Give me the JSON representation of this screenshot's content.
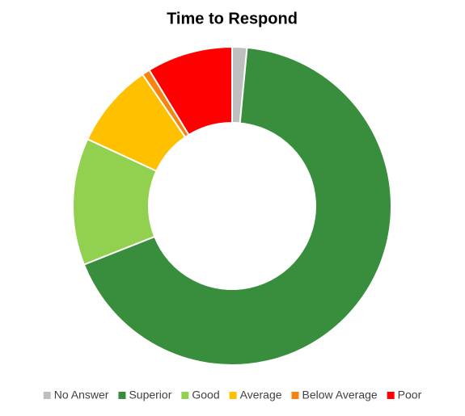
{
  "chart_data": {
    "type": "doughnut",
    "title": "Time to Respond",
    "categories": [
      "No Answer",
      "Superior",
      "Good",
      "Average",
      "Below Average",
      "Poor"
    ],
    "values": [
      1.5,
      67.5,
      12.9,
      8.6,
      0.8,
      8.7
    ],
    "colors": [
      "#bfbfbf",
      "#388e3c",
      "#92d050",
      "#ffc000",
      "#f5850f",
      "#ff0000"
    ],
    "legend": "bottom"
  }
}
